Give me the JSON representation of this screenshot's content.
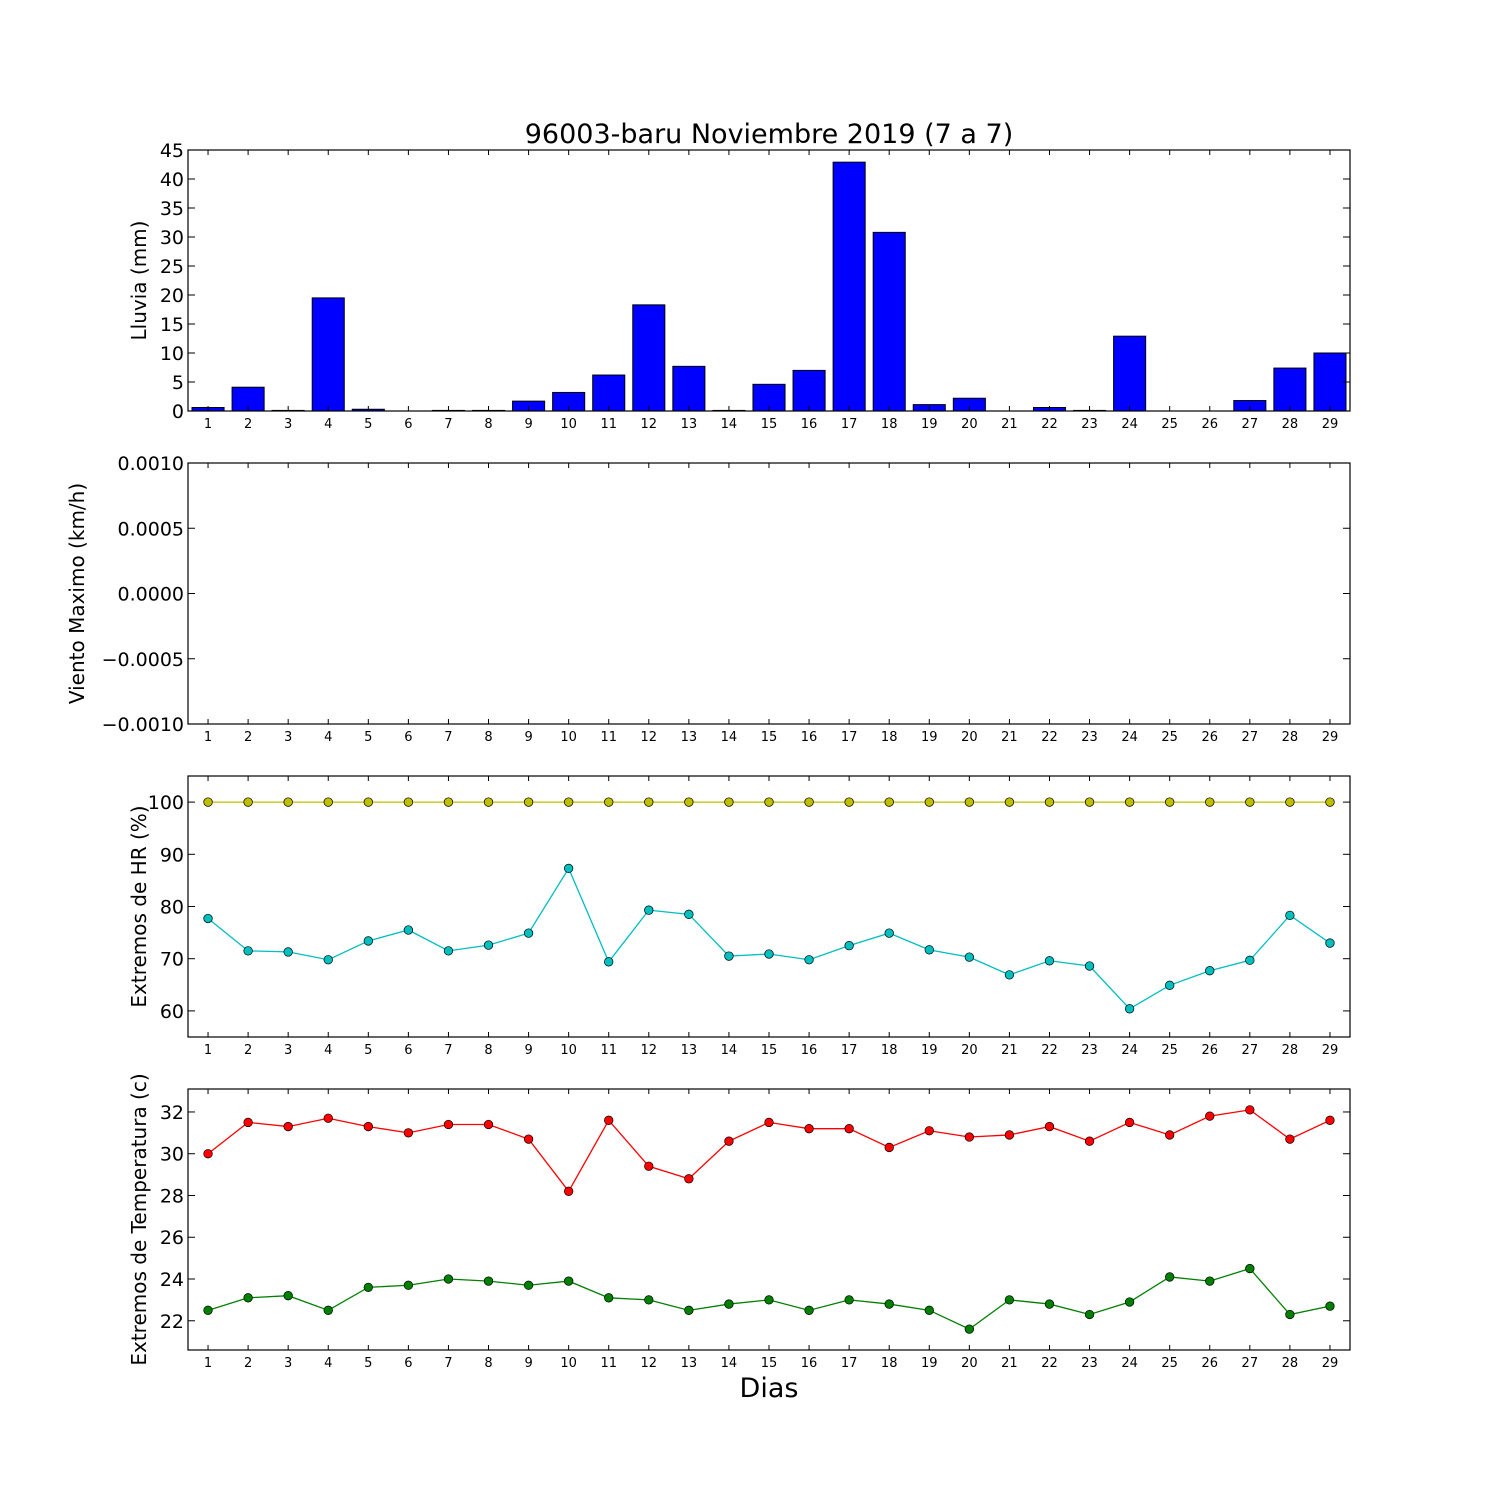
{
  "chart_data": [
    {
      "type": "bar",
      "title": "96003-baru Noviembre 2019  (7 a 7)",
      "xlabel": "",
      "ylabel": "Lluvia (mm)",
      "categories": [
        "1",
        "2",
        "3",
        "4",
        "5",
        "6",
        "7",
        "8",
        "9",
        "10",
        "11",
        "12",
        "13",
        "14",
        "15",
        "16",
        "17",
        "18",
        "19",
        "20",
        "21",
        "22",
        "23",
        "24",
        "25",
        "26",
        "27",
        "28",
        "29"
      ],
      "series": [
        {
          "color": "#0000ff",
          "values": [
            0.6,
            4.1,
            0.1,
            19.5,
            0.3,
            0.0,
            0.1,
            0.1,
            1.7,
            3.2,
            6.2,
            18.3,
            7.7,
            0.1,
            4.6,
            7.0,
            42.9,
            30.8,
            1.1,
            2.2,
            0.0,
            0.6,
            0.1,
            12.9,
            0.0,
            0.0,
            1.8,
            7.4,
            10.0
          ]
        }
      ],
      "ylim": [
        0,
        45
      ],
      "yticks": [
        "0",
        "5",
        "10",
        "15",
        "20",
        "25",
        "30",
        "35",
        "40",
        "45"
      ],
      "grid": false
    },
    {
      "type": "line",
      "title": "",
      "xlabel": "",
      "ylabel": "Viento Maximo (km/h)",
      "categories": [
        "1",
        "2",
        "3",
        "4",
        "5",
        "6",
        "7",
        "8",
        "9",
        "10",
        "11",
        "12",
        "13",
        "14",
        "15",
        "16",
        "17",
        "18",
        "19",
        "20",
        "21",
        "22",
        "23",
        "24",
        "25",
        "26",
        "27",
        "28",
        "29"
      ],
      "series": [],
      "ylim": [
        -0.001,
        0.001
      ],
      "yticks": [
        "−0.0010",
        "−0.0005",
        "0.0000",
        "0.0005",
        "0.0010"
      ],
      "grid": false
    },
    {
      "type": "line",
      "title": "",
      "xlabel": "",
      "ylabel": "Extremos de HR (%)",
      "categories": [
        "1",
        "2",
        "3",
        "4",
        "5",
        "6",
        "7",
        "8",
        "9",
        "10",
        "11",
        "12",
        "13",
        "14",
        "15",
        "16",
        "17",
        "18",
        "19",
        "20",
        "21",
        "22",
        "23",
        "24",
        "25",
        "26",
        "27",
        "28",
        "29"
      ],
      "series": [
        {
          "color": "#bfbf00",
          "values": [
            100,
            100,
            100,
            100,
            100,
            100,
            100,
            100,
            100,
            100,
            100,
            100,
            100,
            100,
            100,
            100,
            100,
            100,
            100,
            100,
            100,
            100,
            100,
            100,
            100,
            100,
            100,
            100,
            100
          ]
        },
        {
          "color": "#00bfbf",
          "values": [
            77.7,
            71.5,
            71.3,
            69.8,
            73.4,
            75.5,
            71.5,
            72.6,
            74.9,
            87.3,
            69.4,
            79.3,
            78.5,
            70.5,
            70.9,
            69.8,
            72.5,
            74.9,
            71.7,
            70.3,
            66.9,
            69.6,
            68.6,
            60.4,
            64.9,
            67.7,
            69.7,
            78.3,
            73.0
          ]
        }
      ],
      "ylim": [
        55,
        105
      ],
      "yticks": [
        "60",
        "70",
        "80",
        "90",
        "100"
      ],
      "grid": false
    },
    {
      "type": "line",
      "title": "",
      "xlabel": "Dias",
      "ylabel": "Extremos de Temperatura (c)",
      "categories": [
        "1",
        "2",
        "3",
        "4",
        "5",
        "6",
        "7",
        "8",
        "9",
        "10",
        "11",
        "12",
        "13",
        "14",
        "15",
        "16",
        "17",
        "18",
        "19",
        "20",
        "21",
        "22",
        "23",
        "24",
        "25",
        "26",
        "27",
        "28",
        "29"
      ],
      "series": [
        {
          "color": "#ff0000",
          "values": [
            30.0,
            31.5,
            31.3,
            31.7,
            31.3,
            31.0,
            31.4,
            31.4,
            30.7,
            28.2,
            31.6,
            29.4,
            28.8,
            30.6,
            31.5,
            31.2,
            31.2,
            30.3,
            31.1,
            30.8,
            30.9,
            31.3,
            30.6,
            31.5,
            30.9,
            31.8,
            32.1,
            30.7,
            31.6
          ]
        },
        {
          "color": "#008000",
          "values": [
            22.5,
            23.1,
            23.2,
            22.5,
            23.6,
            23.7,
            24.0,
            23.9,
            23.7,
            23.9,
            23.1,
            23.0,
            22.5,
            22.8,
            23.0,
            22.5,
            23.0,
            22.8,
            22.5,
            21.6,
            23.0,
            22.8,
            22.3,
            22.9,
            24.1,
            23.9,
            24.5,
            22.3,
            22.7
          ]
        }
      ],
      "ylim": [
        20.6,
        33.1
      ],
      "yticks": [
        "22",
        "24",
        "26",
        "28",
        "30",
        "32"
      ],
      "grid": false
    }
  ]
}
